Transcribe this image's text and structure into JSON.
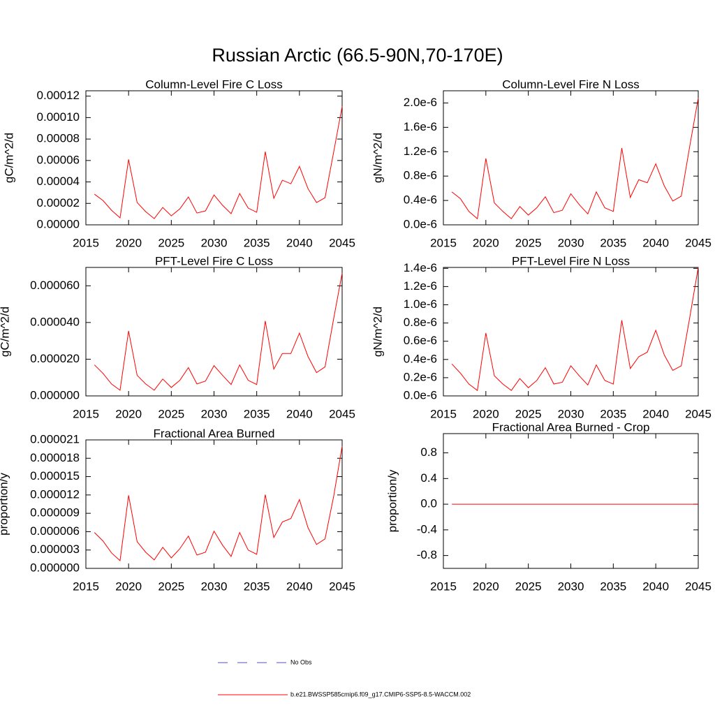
{
  "title": "Russian Arctic (66.5-90N,70-170E)",
  "legend": [
    {
      "name": "No Obs",
      "color": "#5050c0",
      "dashed": true
    },
    {
      "name": "b.e21.BWSSP585cmip6.f09_g17.CMIP6-SSP5-8.5-WACCM.002",
      "color": "#ff0000",
      "dashed": false
    }
  ],
  "chart_data": [
    {
      "type": "line",
      "title": "Column-Level Fire C Loss",
      "y_label": "gC/m^2/d",
      "color": "#ff0000",
      "x": [
        2016,
        2017,
        2018,
        2019,
        2020,
        2021,
        2022,
        2023,
        2024,
        2025,
        2026,
        2027,
        2028,
        2029,
        2030,
        2031,
        2032,
        2033,
        2034,
        2035,
        2036,
        2037,
        2038,
        2039,
        2040,
        2041,
        2042,
        2043,
        2044,
        2045
      ],
      "values": [
        2.86e-05,
        2.27e-05,
        1.36e-05,
        6.5e-06,
        6.1e-05,
        2.08e-05,
        1.23e-05,
        5.8e-06,
        1.62e-05,
        8.4e-06,
        1.49e-05,
        2.6e-05,
        1.1e-05,
        1.3e-05,
        2.79e-05,
        1.82e-05,
        1.04e-05,
        2.92e-05,
        1.56e-05,
        1.17e-05,
        6.82e-05,
        2.47e-05,
        4.16e-05,
        3.83e-05,
        5.45e-05,
        3.38e-05,
        2.08e-05,
        2.53e-05,
        6.75e-05,
        0.0001104
      ],
      "xlim": [
        2015,
        2045
      ],
      "xticks": [
        2015,
        2020,
        2025,
        2030,
        2035,
        2040,
        2045
      ],
      "ylim": [
        0,
        0.000125
      ],
      "yticks": [
        {
          "value": 0,
          "label": "0.00000"
        },
        2e-05,
        4e-05,
        6e-05,
        8e-05,
        {
          "value": 0.0001,
          "label": "0.00010"
        },
        0.00012
      ]
    },
    {
      "type": "line",
      "title": "Column-Level Fire N Loss",
      "y_label": "gN/m^2/d",
      "color": "#ff0000",
      "x": [
        2016,
        2017,
        2018,
        2019,
        2020,
        2021,
        2022,
        2023,
        2024,
        2025,
        2026,
        2027,
        2028,
        2029,
        2030,
        2031,
        2032,
        2033,
        2034,
        2035,
        2036,
        2037,
        2038,
        2039,
        2040,
        2041,
        2042,
        2043,
        2044,
        2045
      ],
      "values": [
        5.4e-07,
        4.3e-07,
        2.2e-07,
        1e-07,
        1.09e-06,
        3.6e-07,
        2.2e-07,
        1e-07,
        3e-07,
        1.6e-07,
        2.8e-07,
        4.6e-07,
        2e-07,
        2.4e-07,
        5.1e-07,
        3.3e-07,
        1.8e-07,
        5.4e-07,
        2.8e-07,
        2.2e-07,
        1.26e-06,
        4.5e-07,
        7.4e-07,
        6.9e-07,
        1e-06,
        6.4e-07,
        3.9e-07,
        4.7e-07,
        1.29e-06,
        2.08e-06
      ],
      "xlim": [
        2015,
        2045
      ],
      "xticks": [
        2015,
        2020,
        2025,
        2030,
        2035,
        2040,
        2045
      ],
      "ylim": [
        0,
        2.2e-06
      ],
      "yticks": [
        {
          "value": 0,
          "label": "0.0e-6"
        },
        {
          "value": 4e-07,
          "label": "0.4e-6"
        },
        {
          "value": 8e-07,
          "label": "0.8e-6"
        },
        {
          "value": 1.2e-06,
          "label": "1.2e-6"
        },
        {
          "value": 1.6e-06,
          "label": "1.6e-6"
        },
        {
          "value": 2e-06,
          "label": "2.0e-6"
        }
      ]
    },
    {
      "type": "line",
      "title": "PFT-Level Fire C Loss",
      "y_label": "gC/m^2/d",
      "color": "#ff0000",
      "x": [
        2016,
        2017,
        2018,
        2019,
        2020,
        2021,
        2022,
        2023,
        2024,
        2025,
        2026,
        2027,
        2028,
        2029,
        2030,
        2031,
        2032,
        2033,
        2034,
        2035,
        2036,
        2037,
        2038,
        2039,
        2040,
        2041,
        2042,
        2043,
        2044,
        2045
      ],
      "values": [
        1.69e-05,
        1.23e-05,
        6.5e-06,
        3.1e-06,
        3.54e-05,
        1.12e-05,
        6.5e-06,
        3.1e-06,
        9.2e-06,
        4.6e-06,
        8.5e-06,
        1.54e-05,
        6.5e-06,
        8.1e-06,
        1.65e-05,
        1.12e-05,
        6.2e-06,
        1.69e-05,
        8.5e-06,
        6.2e-06,
        4.08e-05,
        1.46e-05,
        2.31e-05,
        2.31e-05,
        3.42e-05,
        2.15e-05,
        1.27e-05,
        1.58e-05,
        4.19e-05,
        6.69e-05
      ],
      "xlim": [
        2015,
        2045
      ],
      "xticks": [
        2015,
        2020,
        2025,
        2030,
        2035,
        2040,
        2045
      ],
      "ylim": [
        0,
        7e-05
      ],
      "yticks": [
        {
          "value": 0,
          "label": "0.000000"
        },
        {
          "value": 2e-05,
          "label": "0.000020"
        },
        {
          "value": 4e-05,
          "label": "0.000040"
        },
        {
          "value": 6e-05,
          "label": "0.000060"
        }
      ]
    },
    {
      "type": "line",
      "title": "PFT-Level Fire N Loss",
      "y_label": "gN/m^2/d",
      "color": "#ff0000",
      "x": [
        2016,
        2017,
        2018,
        2019,
        2020,
        2021,
        2022,
        2023,
        2024,
        2025,
        2026,
        2027,
        2028,
        2029,
        2030,
        2031,
        2032,
        2033,
        2034,
        2035,
        2036,
        2037,
        2038,
        2039,
        2040,
        2041,
        2042,
        2043,
        2044,
        2045
      ],
      "values": [
        3.5e-07,
        2.5e-07,
        1.3e-07,
        6e-08,
        6.9e-07,
        2.2e-07,
        1.3e-07,
        6e-08,
        1.9e-07,
        9e-08,
        1.7e-07,
        3.1e-07,
        1.3e-07,
        1.5e-07,
        3.3e-07,
        2.2e-07,
        1.2e-07,
        3.4e-07,
        1.7e-07,
        1.3e-07,
        8.3e-07,
        3e-07,
        4.3e-07,
        4.8e-07,
        7.2e-07,
        4.5e-07,
        2.8e-07,
        3.3e-07,
        8.6e-07,
        1.41e-06
      ],
      "xlim": [
        2015,
        2045
      ],
      "xticks": [
        2015,
        2020,
        2025,
        2030,
        2035,
        2040,
        2045
      ],
      "ylim": [
        0,
        1.41e-06
      ],
      "yticks": [
        {
          "value": 0,
          "label": "0.0e-6"
        },
        {
          "value": 2e-07,
          "label": "0.2e-6"
        },
        {
          "value": 4e-07,
          "label": "0.4e-6"
        },
        {
          "value": 6e-07,
          "label": "0.6e-6"
        },
        {
          "value": 8e-07,
          "label": "0.8e-6"
        },
        {
          "value": 1e-06,
          "label": "1.0e-6"
        },
        {
          "value": 1.2e-06,
          "label": "1.2e-6"
        },
        {
          "value": 1.4e-06,
          "label": "1.4e-6"
        }
      ]
    },
    {
      "type": "line",
      "title": "Fractional Area Burned",
      "y_label": "proportion/y",
      "color": "#ff0000",
      "x": [
        2016,
        2017,
        2018,
        2019,
        2020,
        2021,
        2022,
        2023,
        2024,
        2025,
        2026,
        2027,
        2028,
        2029,
        2030,
        2031,
        2032,
        2033,
        2034,
        2035,
        2036,
        2037,
        2038,
        2039,
        2040,
        2041,
        2042,
        2043,
        2044,
        2045
      ],
      "values": [
        5.86e-06,
        4.48e-06,
        2.53e-06,
        1.26e-06,
        1.194e-05,
        4.36e-06,
        2.64e-06,
        1.38e-06,
        3.44e-06,
        1.72e-06,
        3.21e-06,
        5.28e-06,
        2.18e-06,
        2.64e-06,
        6.08e-06,
        3.79e-06,
        1.95e-06,
        5.86e-06,
        2.99e-06,
        2.3e-06,
        1.205e-05,
        5.05e-06,
        7.58e-06,
        8.15e-06,
        1.125e-05,
        6.66e-06,
        3.9e-06,
        4.82e-06,
        1.171e-05,
        1.998e-05
      ],
      "xlim": [
        2015,
        2045
      ],
      "xticks": [
        2015,
        2020,
        2025,
        2030,
        2035,
        2040,
        2045
      ],
      "ylim": [
        0,
        2.1e-05
      ],
      "yticks": [
        {
          "value": 0,
          "label": "0.000000"
        },
        3e-06,
        6e-06,
        9e-06,
        1.2e-05,
        1.5e-05,
        1.8e-05,
        2.1e-05
      ]
    },
    {
      "type": "line",
      "title": "Fractional Area Burned - Crop",
      "y_label": "proportion/y",
      "color": "#ff0000",
      "x": [
        2016,
        2017,
        2018,
        2019,
        2020,
        2021,
        2022,
        2023,
        2024,
        2025,
        2026,
        2027,
        2028,
        2029,
        2030,
        2031,
        2032,
        2033,
        2034,
        2035,
        2036,
        2037,
        2038,
        2039,
        2040,
        2041,
        2042,
        2043,
        2044,
        2045
      ],
      "values": [
        0,
        0,
        0,
        0,
        0,
        0,
        0,
        0,
        0,
        0,
        0,
        0,
        0,
        0,
        0,
        0,
        0,
        0,
        0,
        0,
        0,
        0,
        0,
        0,
        0,
        0,
        0,
        0,
        0,
        0
      ],
      "xlim": [
        2015,
        2045
      ],
      "xticks": [
        2015,
        2020,
        2025,
        2030,
        2035,
        2040,
        2045
      ],
      "ylim": [
        -1,
        1.1
      ],
      "yticks": [
        -0.8,
        -0.4,
        {
          "value": 0,
          "label": "0.0"
        },
        0.4,
        0.8
      ]
    }
  ]
}
